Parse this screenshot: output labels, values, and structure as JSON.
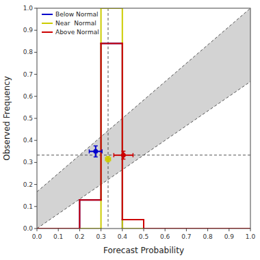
{
  "chart_data": {
    "type": "histogram",
    "xlabel": "Forecast Probability",
    "ylabel": "Observed Frequency",
    "xlim": [
      0.0,
      1.0
    ],
    "ylim": [
      0.0,
      1.0
    ],
    "xticks": [
      {
        "value": 0.0,
        "label": "0.0"
      },
      0.1,
      0.2,
      0.3,
      0.4,
      0.5,
      0.6,
      0.7,
      0.8,
      0.9,
      {
        "value": 1.0,
        "label": "1.0"
      }
    ],
    "yticks": [
      {
        "value": 0.0,
        "label": "0.0"
      },
      0.1,
      0.2,
      0.3,
      0.4,
      0.5,
      0.6,
      0.7,
      0.8,
      0.9,
      {
        "value": 1.0,
        "label": "1.0"
      }
    ],
    "grid": false,
    "legend": "upper left",
    "clim_prob": 0.3333,
    "diag_upper": [
      0.0,
      0.1667,
      1.0,
      1.0
    ],
    "diag_lower": [
      0.0,
      0.0,
      1.0,
      0.6667
    ],
    "bins": [
      0.0,
      0.1,
      0.2,
      0.3,
      0.4,
      0.5,
      0.6,
      0.7,
      0.8,
      0.9,
      1.0
    ],
    "series": [
      {
        "name": "Below Normal",
        "color": "#0000cc",
        "values": [
          0.0,
          0.0,
          0.13,
          0.84,
          0.0,
          0.0,
          0.0,
          0.0,
          0.0,
          0.0
        ],
        "point_x": 0.275,
        "point_y": 0.35,
        "point_xerr": 0.03,
        "point_yerr": 0.025
      },
      {
        "name": "Near  Normal",
        "color": "#cccc00",
        "values": [
          0.0,
          0.0,
          0.0,
          1.0,
          0.0,
          0.0,
          0.0,
          0.0,
          0.0,
          0.0
        ],
        "point_x": 0.333,
        "point_y": 0.315,
        "point_xerr": 0.012,
        "point_yerr": 0.012
      },
      {
        "name": "Above Normal",
        "color": "#cc0000",
        "values": [
          0.0,
          0.0,
          0.13,
          0.84,
          0.04,
          0.0,
          0.0,
          0.0,
          0.0,
          0.0
        ],
        "point_x": 0.405,
        "point_y": 0.333,
        "point_xerr": 0.045,
        "point_yerr": 0.018
      }
    ]
  }
}
